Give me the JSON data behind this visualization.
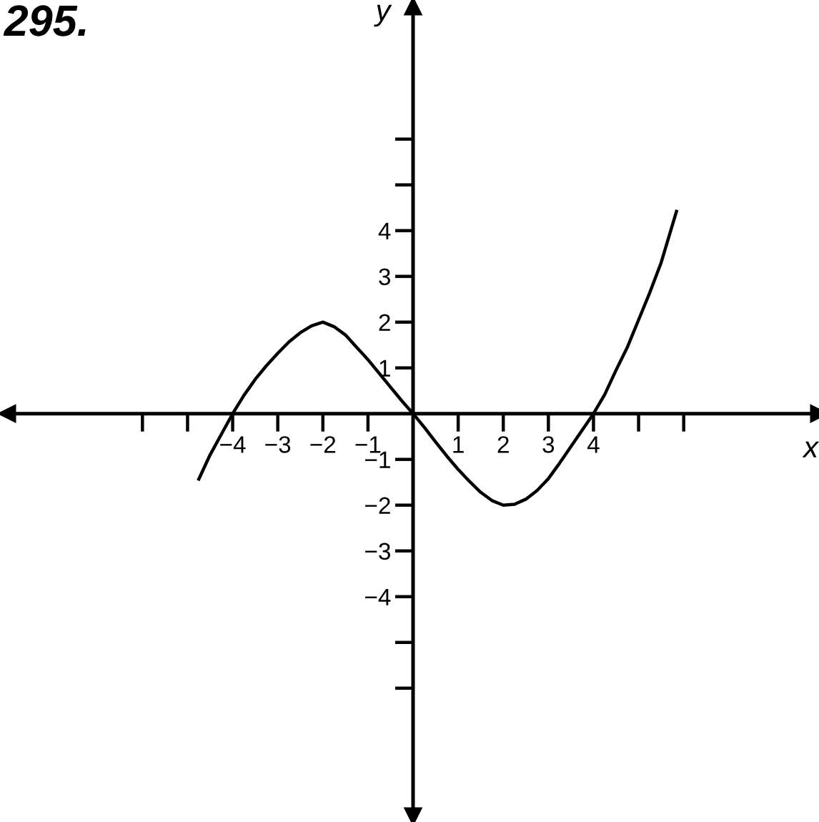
{
  "chart_data": {
    "type": "line",
    "title": "295.",
    "xlabel": "x",
    "ylabel": "y",
    "x": [
      -4.75,
      -4.5,
      -4.25,
      -4,
      -3.75,
      -3.5,
      -3.25,
      -3,
      -2.75,
      -2.5,
      -2.25,
      -2,
      -1.75,
      -1.5,
      -1.25,
      -1,
      -0.75,
      -0.5,
      -0.25,
      0,
      0.25,
      0.5,
      0.75,
      1,
      1.25,
      1.5,
      1.75,
      2,
      2.25,
      2.5,
      2.75,
      3,
      3.25,
      3.5,
      3.75,
      4,
      4.25,
      4.5,
      4.75,
      5,
      5.25,
      5.5,
      5.84
    ],
    "series": [
      {
        "color": "#000000",
        "values": [
          -1.43,
          -0.9,
          -0.45,
          0,
          0.4,
          0.75,
          1.05,
          1.32,
          1.57,
          1.77,
          1.92,
          2,
          1.9,
          1.72,
          1.45,
          1.18,
          0.88,
          0.58,
          0.28,
          0,
          -0.3,
          -0.62,
          -0.93,
          -1.22,
          -1.48,
          -1.72,
          -1.9,
          -2,
          -1.98,
          -1.87,
          -1.68,
          -1.42,
          -1.08,
          -0.72,
          -0.36,
          0,
          0.42,
          0.95,
          1.45,
          2.05,
          2.65,
          3.3,
          4.42
        ]
      }
    ],
    "xlim": [
      -9,
      9
    ],
    "ylim": [
      -8.8,
      8.9
    ],
    "xticks": [
      {
        "value": -6,
        "label": null
      },
      {
        "value": -5,
        "label": null
      },
      {
        "value": -4,
        "label": "−4"
      },
      {
        "value": -3,
        "label": "−3"
      },
      {
        "value": -2,
        "label": "−2"
      },
      {
        "value": -1,
        "label": "−1"
      },
      1,
      2,
      3,
      4,
      {
        "value": 5,
        "label": null
      },
      {
        "value": 6,
        "label": null
      }
    ],
    "yticks": [
      {
        "value": -6,
        "label": null
      },
      {
        "value": -5,
        "label": null
      },
      {
        "value": -4,
        "label": "−4"
      },
      {
        "value": -3,
        "label": "−3"
      },
      {
        "value": -2,
        "label": "−2"
      },
      {
        "value": -1,
        "label": "−1"
      },
      1,
      2,
      3,
      4,
      {
        "value": 5,
        "label": null
      },
      {
        "value": 6,
        "label": null
      }
    ],
    "grid": false,
    "legend": false,
    "marker": "none",
    "line_style": "solid"
  }
}
